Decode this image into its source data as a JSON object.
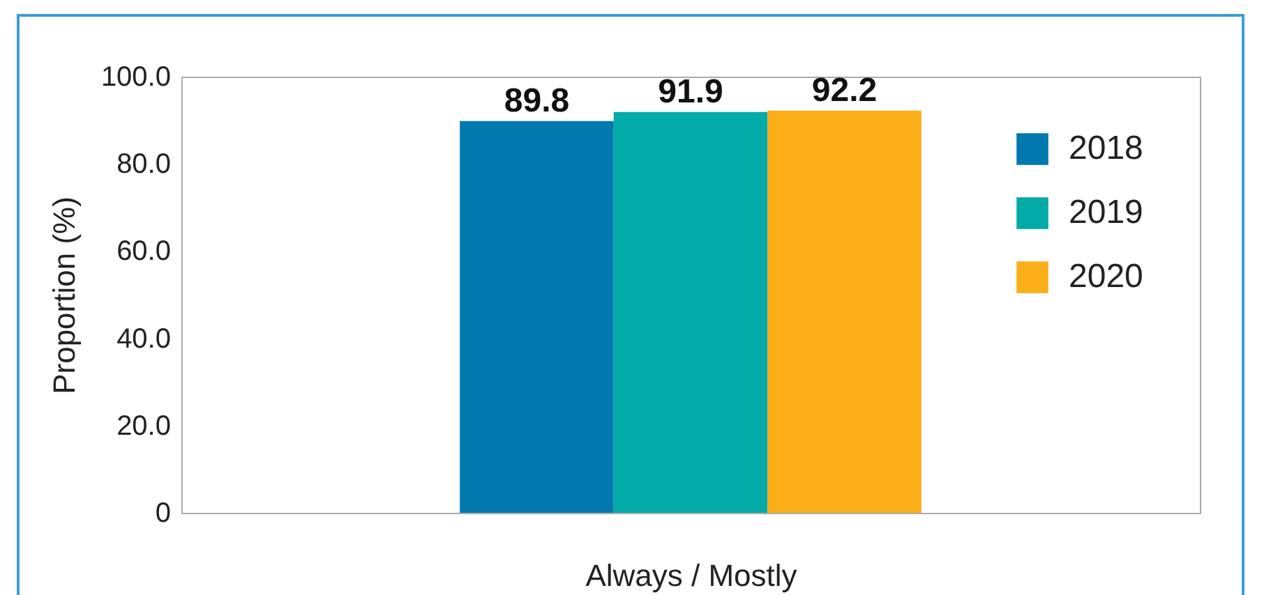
{
  "chart_data": {
    "type": "bar",
    "xlabel": "Always / Mostly",
    "ylabel": "Proportion (%)",
    "categories": [
      null
    ],
    "series": [
      {
        "name": "2018",
        "color": "#0279ae",
        "values": [
          89.8
        ]
      },
      {
        "name": "2019",
        "color": "#02aaa8",
        "values": [
          91.9
        ]
      },
      {
        "name": "2020",
        "color": "#fbae18",
        "values": [
          92.2
        ]
      }
    ],
    "ylim": [
      0,
      100
    ],
    "yticks": [
      {
        "value": 0,
        "label": "0"
      },
      {
        "value": 20,
        "label": "20.0"
      },
      {
        "value": 40,
        "label": "40.0"
      },
      {
        "value": 60,
        "label": "60.0"
      },
      {
        "value": 80,
        "label": "80.0"
      },
      {
        "value": 100,
        "label": "100.0"
      }
    ],
    "data_labels": true,
    "legend": "top right",
    "grid": false
  }
}
